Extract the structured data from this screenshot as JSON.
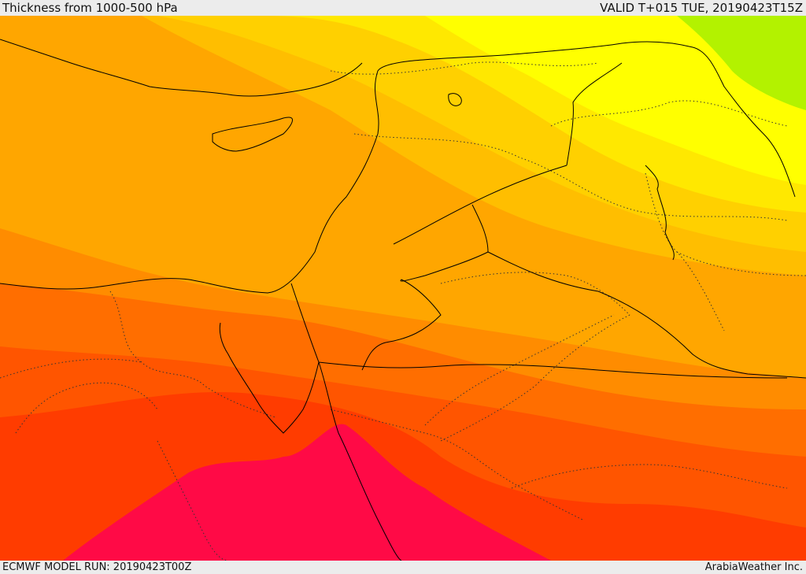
{
  "header": {
    "title": "Thickness from 1000-500 hPa",
    "valid": "VALID T+015 TUE, 20190423T15Z"
  },
  "footer": {
    "model_run": "ECMWF MODEL RUN: 20190423T00Z",
    "credit": "ArabiaWeather Inc."
  },
  "map": {
    "region": "Eastern Mediterranean / Middle East",
    "field": "1000-500 hPa thickness",
    "bands": [
      {
        "name": "band-yellow-green",
        "color": "#b3f200"
      },
      {
        "name": "band-yellow",
        "color": "#ffff00"
      },
      {
        "name": "band-light-yellow",
        "color": "#ffe800"
      },
      {
        "name": "band-gold",
        "color": "#ffd000"
      },
      {
        "name": "band-amber",
        "color": "#ffbe00"
      },
      {
        "name": "band-orange-light",
        "color": "#ffa600"
      },
      {
        "name": "band-orange",
        "color": "#ff8c00"
      },
      {
        "name": "band-orange-deep",
        "color": "#ff6e00"
      },
      {
        "name": "band-red-orange",
        "color": "#ff5500"
      },
      {
        "name": "band-red",
        "color": "#ff3c00"
      },
      {
        "name": "band-crimson",
        "color": "#ff0a46"
      }
    ],
    "coastline_color": "#000000",
    "border_style": "dotted"
  }
}
